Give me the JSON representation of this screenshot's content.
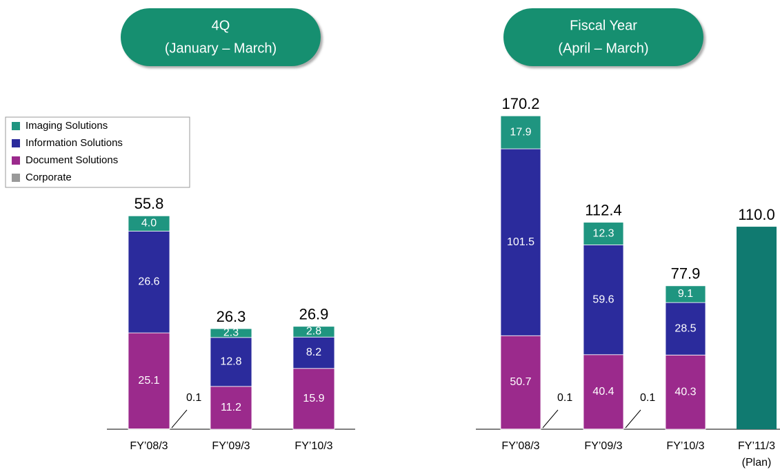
{
  "chart_data": [
    {
      "type": "stacked-bar",
      "title": "4Q",
      "subtitle": "(January – March)",
      "categories": [
        "FY’08/3",
        "FY’09/3",
        "FY’10/3"
      ],
      "ylim": [
        0,
        60
      ],
      "series": [
        {
          "name": "Imaging Solutions",
          "color": "#1f9580",
          "values": [
            4.0,
            2.3,
            2.8
          ],
          "value_labels": [
            "4.0",
            "2.3",
            "2.8"
          ]
        },
        {
          "name": "Information Solutions",
          "color": "#2b2b9c",
          "values": [
            26.6,
            12.8,
            8.2
          ]
        },
        {
          "name": "Document Solutions",
          "color": "#9b2a8c",
          "values": [
            25.1,
            11.2,
            15.9
          ]
        },
        {
          "name": "Corporate",
          "color": "#999999",
          "values": [
            0.1,
            null,
            null
          ]
        }
      ],
      "totals": {
        "values": [
          55.8,
          26.3,
          26.9
        ]
      }
    },
    {
      "type": "stacked-bar",
      "title": "Fiscal Year",
      "subtitle": "(April – March)",
      "categories": [
        "FY’08/3",
        "FY’09/3",
        "FY’10/3",
        "FY’11/3"
      ],
      "category_notes": [
        null,
        null,
        null,
        "(Plan)"
      ],
      "ylim": [
        0,
        180
      ],
      "plan_color": "#107a70",
      "series": [
        {
          "color": "#1f9580",
          "values": [
            17.9,
            12.3,
            9.1,
            null
          ]
        },
        {
          "color": "#2b2b9c",
          "values": [
            101.5,
            59.6,
            28.5,
            null
          ]
        },
        {
          "color": "#9b2a8c",
          "values": [
            50.7,
            40.4,
            40.3,
            null
          ]
        },
        {
          "color": "#999999",
          "values": [
            0.1,
            0.1,
            null,
            null
          ]
        }
      ],
      "totals": {
        "values": [
          170.2,
          112.4,
          77.9,
          110.0
        ],
        "value_labels": [
          "170.2",
          "112.4",
          "77.9",
          "110.0"
        ]
      }
    }
  ]
}
